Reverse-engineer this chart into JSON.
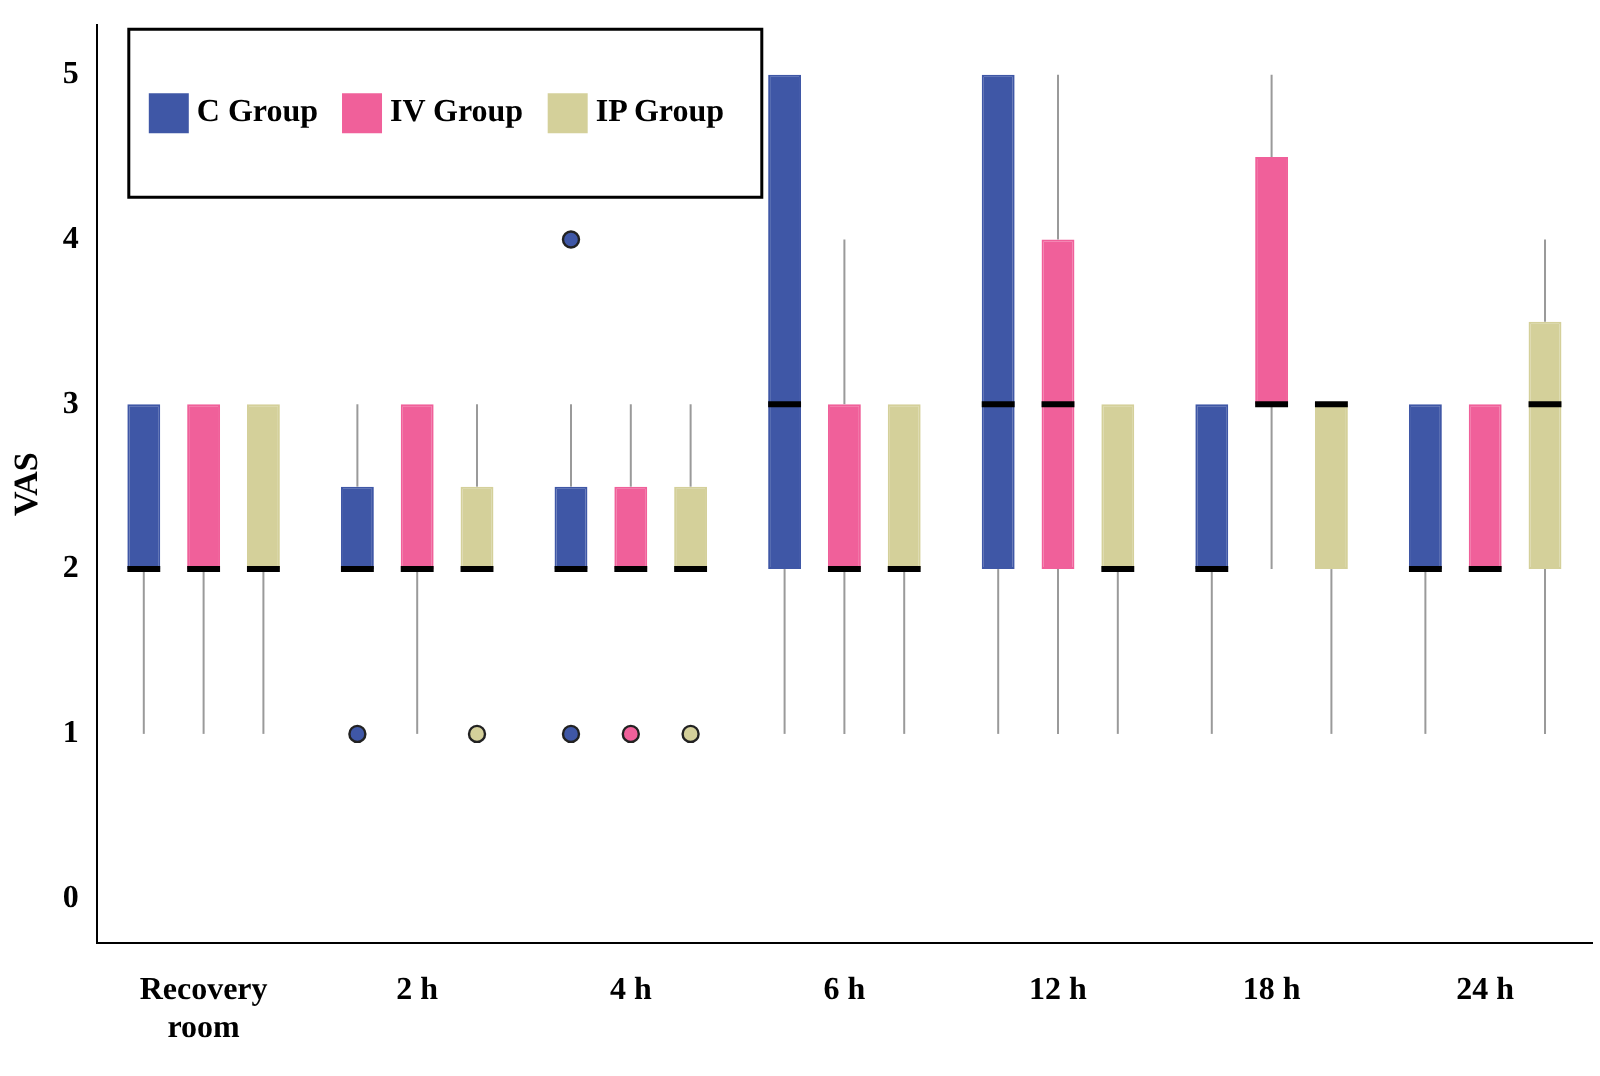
{
  "chart_data": {
    "type": "box",
    "ylabel": "VAS",
    "categories": [
      "Recovery room",
      "2 h",
      "4 h",
      "6 h",
      "12 h",
      "18 h",
      "24 h"
    ],
    "ylim": [
      -0.27,
      5.3
    ],
    "yticks": [
      0,
      1,
      2,
      3,
      4,
      5
    ],
    "grid": false,
    "legend": "top left",
    "series": [
      {
        "name": "C Group",
        "color": "#3f57a6",
        "boxes": [
          {
            "low": 1,
            "q1": 2,
            "median": 2,
            "q3": 3,
            "high": 3
          },
          {
            "low": 2,
            "q1": 2,
            "median": 2,
            "q3": 2.5,
            "high": 3,
            "outliers": [
              1
            ]
          },
          {
            "low": 2,
            "q1": 2,
            "median": 2,
            "q3": 2.5,
            "high": 3,
            "outliers": [
              4,
              1
            ]
          },
          {
            "low": 1,
            "q1": 2,
            "median": 3,
            "q3": 5,
            "high": 5
          },
          {
            "low": 1,
            "q1": 2,
            "median": 3,
            "q3": 5,
            "high": 5
          },
          {
            "low": 1,
            "q1": 2,
            "median": 2,
            "q3": 3,
            "high": 3
          },
          {
            "low": 1,
            "q1": 2,
            "median": 2,
            "q3": 3,
            "high": 3
          }
        ]
      },
      {
        "name": "IV Group",
        "color": "#f0609a",
        "boxes": [
          {
            "low": 1,
            "q1": 2,
            "median": 2,
            "q3": 3,
            "high": 3
          },
          {
            "low": 1,
            "q1": 2,
            "median": 2,
            "q3": 3,
            "high": 3
          },
          {
            "low": 2,
            "q1": 2,
            "median": 2,
            "q3": 2.5,
            "high": 3,
            "outliers": [
              1
            ]
          },
          {
            "low": 1,
            "q1": 2,
            "median": 2,
            "q3": 3,
            "high": 4
          },
          {
            "low": 1,
            "q1": 2,
            "median": 3,
            "q3": 4,
            "high": 5
          },
          {
            "low": 2,
            "q1": 3,
            "median": 3,
            "q3": 4.5,
            "high": 5
          },
          {
            "low": 2,
            "q1": 2,
            "median": 2,
            "q3": 3,
            "high": 3
          }
        ]
      },
      {
        "name": "IP Group",
        "color": "#d4d09a",
        "boxes": [
          {
            "low": 1,
            "q1": 2,
            "median": 2,
            "q3": 3,
            "high": 3
          },
          {
            "low": 2,
            "q1": 2,
            "median": 2,
            "q3": 2.5,
            "high": 3,
            "outliers": [
              1
            ]
          },
          {
            "low": 2,
            "q1": 2,
            "median": 2,
            "q3": 2.5,
            "high": 3,
            "outliers": [
              1
            ]
          },
          {
            "low": 1,
            "q1": 2,
            "median": 2,
            "q3": 3,
            "high": 3
          },
          {
            "low": 1,
            "q1": 2,
            "median": 2,
            "q3": 3,
            "high": 3
          },
          {
            "low": 1,
            "q1": 2,
            "median": 3,
            "q3": 3,
            "high": 3
          },
          {
            "low": 1,
            "q1": 2,
            "median": 3,
            "q3": 3.5,
            "high": 4
          }
        ]
      }
    ]
  }
}
